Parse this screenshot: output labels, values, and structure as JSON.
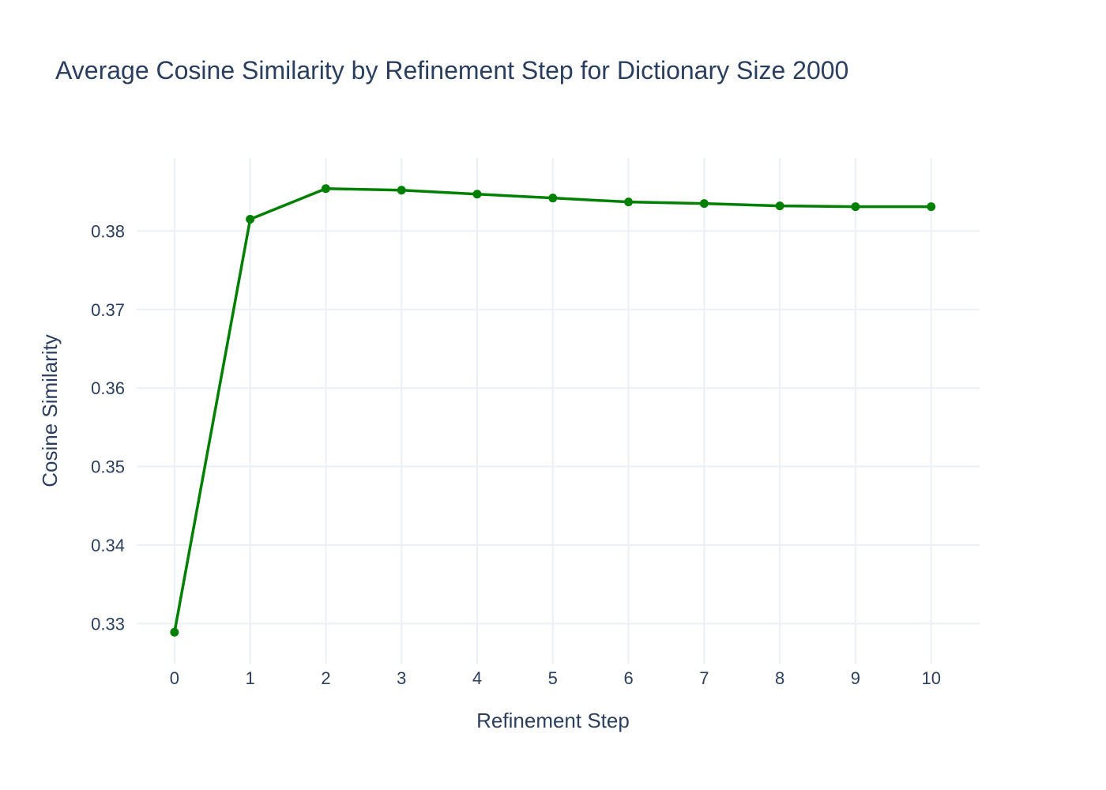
{
  "chart_data": {
    "type": "line",
    "title": "Average Cosine Similarity by Refinement Step for Dictionary Size 2000",
    "xlabel": "Refinement Step",
    "ylabel": "Cosine Similarity",
    "x": [
      0,
      1,
      2,
      3,
      4,
      5,
      6,
      7,
      8,
      9,
      10
    ],
    "series": [
      {
        "values": [
          0.3289,
          0.3815,
          0.3854,
          0.3852,
          0.3847,
          0.3842,
          0.3837,
          0.3835,
          0.3832,
          0.3831,
          0.3831
        ],
        "color": "#008000"
      }
    ],
    "xticks": [
      "0",
      "1",
      "2",
      "3",
      "4",
      "5",
      "6",
      "7",
      "8",
      "9",
      "10"
    ],
    "yticks": [
      "0.33",
      "0.34",
      "0.35",
      "0.36",
      "0.37",
      "0.38"
    ],
    "xlim": [
      -0.5,
      10.64
    ],
    "ylim": [
      0.3249,
      0.3893
    ],
    "grid": true,
    "legend": "none"
  }
}
